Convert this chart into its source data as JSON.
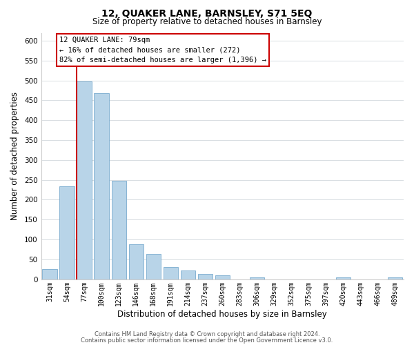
{
  "title": "12, QUAKER LANE, BARNSLEY, S71 5EQ",
  "subtitle": "Size of property relative to detached houses in Barnsley",
  "xlabel": "Distribution of detached houses by size in Barnsley",
  "ylabel": "Number of detached properties",
  "footer_line1": "Contains HM Land Registry data © Crown copyright and database right 2024.",
  "footer_line2": "Contains public sector information licensed under the Open Government Licence v3.0.",
  "bar_labels": [
    "31sqm",
    "54sqm",
    "77sqm",
    "100sqm",
    "123sqm",
    "146sqm",
    "168sqm",
    "191sqm",
    "214sqm",
    "237sqm",
    "260sqm",
    "283sqm",
    "306sqm",
    "329sqm",
    "352sqm",
    "375sqm",
    "397sqm",
    "420sqm",
    "443sqm",
    "466sqm",
    "489sqm"
  ],
  "bar_values": [
    25,
    234,
    497,
    468,
    248,
    88,
    63,
    30,
    22,
    13,
    10,
    0,
    5,
    0,
    0,
    0,
    0,
    5,
    0,
    0,
    5
  ],
  "highlight_index": 2,
  "bar_color": "#b8d4e8",
  "highlight_line_color": "#cc0000",
  "annotation_line1": "12 QUAKER LANE: 79sqm",
  "annotation_line2": "← 16% of detached houses are smaller (272)",
  "annotation_line3": "82% of semi-detached houses are larger (1,396) →",
  "ylim": [
    0,
    620
  ],
  "yticks": [
    0,
    50,
    100,
    150,
    200,
    250,
    300,
    350,
    400,
    450,
    500,
    550,
    600
  ],
  "background_color": "#ffffff",
  "plot_bg_color": "#ffffff",
  "grid_color": "#d8dde2"
}
